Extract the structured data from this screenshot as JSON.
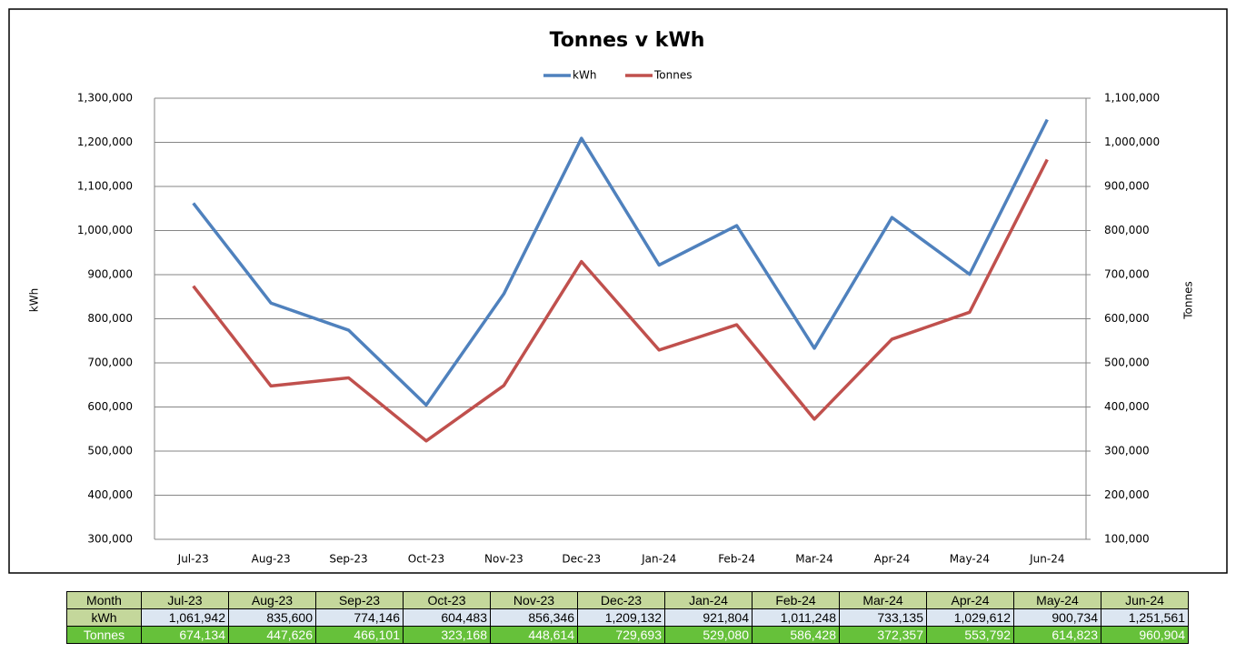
{
  "chart_data": {
    "type": "line",
    "title": "Tonnes v kWh",
    "categories": [
      "Jul-23",
      "Aug-23",
      "Sep-23",
      "Oct-23",
      "Nov-23",
      "Dec-23",
      "Jan-24",
      "Feb-24",
      "Mar-24",
      "Apr-24",
      "May-24",
      "Jun-24"
    ],
    "series": [
      {
        "name": "kWh",
        "color": "#4f81bd",
        "values": [
          1061942,
          835600,
          774146,
          604483,
          856346,
          1209132,
          921804,
          1011248,
          733135,
          1029612,
          900734,
          1251561
        ],
        "value_labels": [
          "1,061,942",
          "835,600",
          "774,146",
          "604,483",
          "856,346",
          "1,209,132",
          "921,804",
          "1,011,248",
          "733,135",
          "1,029,612",
          "900,734",
          "1,251,561"
        ]
      },
      {
        "name": "Tonnes",
        "color": "#c0504d",
        "axis": "y2",
        "values": [
          674134,
          447626,
          466101,
          323168,
          448614,
          729693,
          529080,
          586428,
          372357,
          553792,
          614823,
          960904
        ],
        "value_labels": [
          "674,134",
          "447,626",
          "466,101",
          "323,168",
          "448,614",
          "729,693",
          "529,080",
          "586,428",
          "372,357",
          "553,792",
          "614,823",
          "960,904"
        ]
      }
    ],
    "ylabel": "kWh",
    "y2label": "Tonnes",
    "ylim": [
      300000,
      1300000
    ],
    "yticks": [
      {
        "value": 300000,
        "label": "300,000"
      },
      {
        "value": 400000,
        "label": "400,000"
      },
      {
        "value": 500000,
        "label": "500,000"
      },
      {
        "value": 600000,
        "label": "600,000"
      },
      {
        "value": 700000,
        "label": "700,000"
      },
      {
        "value": 800000,
        "label": "800,000"
      },
      {
        "value": 900000,
        "label": "900,000"
      },
      {
        "value": 1000000,
        "label": "1,000,000"
      },
      {
        "value": 1100000,
        "label": "1,100,000"
      },
      {
        "value": 1200000,
        "label": "1,200,000"
      },
      {
        "value": 1300000,
        "label": "1,300,000"
      }
    ],
    "y2lim": [
      100000,
      1100000
    ],
    "y2ticks": [
      {
        "value": 100000,
        "label": "100,000"
      },
      {
        "value": 200000,
        "label": "200,000"
      },
      {
        "value": 300000,
        "label": "300,000"
      },
      {
        "value": 400000,
        "label": "400,000"
      },
      {
        "value": 500000,
        "label": "500,000"
      },
      {
        "value": 600000,
        "label": "600,000"
      },
      {
        "value": 700000,
        "label": "700,000"
      },
      {
        "value": 800000,
        "label": "800,000"
      },
      {
        "value": 900000,
        "label": "900,000"
      },
      {
        "value": 1000000,
        "label": "1,000,000"
      },
      {
        "value": 1100000,
        "label": "1,100,000"
      }
    ],
    "grid": true,
    "legend": "top"
  },
  "table": {
    "header": "Month"
  }
}
